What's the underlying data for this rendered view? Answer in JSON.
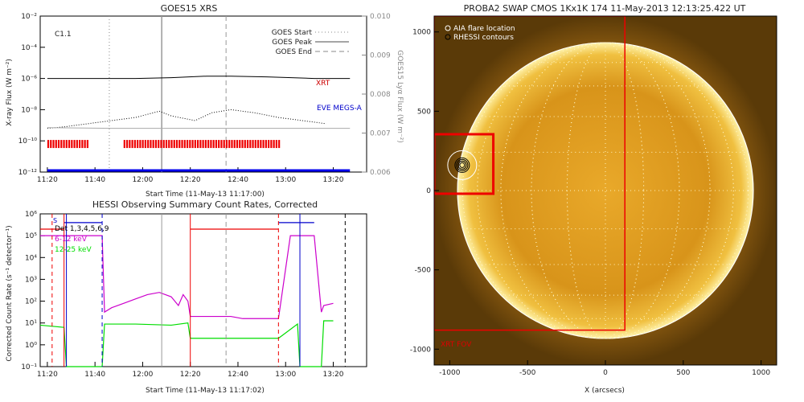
{
  "chart_data": [
    {
      "type": "line",
      "title": "GOES15 XRS",
      "xlabel": "Start Time (11-May-13 11:17:00)",
      "ylabel": "X-ray Flux (W m⁻²)",
      "y2label": "GOES15 Lyα Flux (W m⁻²)",
      "x_ticks": [
        "11:20",
        "11:40",
        "12:00",
        "12:20",
        "12:40",
        "13:00",
        "13:20"
      ],
      "y_ticks": [
        "10⁻¹²",
        "10⁻¹⁰",
        "10⁻⁸",
        "10⁻⁶",
        "10⁻⁴",
        "10⁻²"
      ],
      "y2_ticks": [
        "0.006",
        "0.007",
        "0.008",
        "0.009",
        "0.010"
      ],
      "ylim_exp": [
        -12,
        -2
      ],
      "y2lim": [
        0.006,
        0.01
      ],
      "flare_class": "C1.1",
      "legend": [
        {
          "label": "GOES Start",
          "style": "dotted"
        },
        {
          "label": "GOES Peak",
          "style": "solid"
        },
        {
          "label": "GOES End",
          "style": "dashed"
        }
      ],
      "event_lines_min": {
        "start": 29,
        "peak": 51,
        "end": 78
      },
      "labels": {
        "xrt": "XRT",
        "eve": "EVE MEGS-A"
      },
      "series": [
        {
          "name": "XRT",
          "x": [
            3,
            20,
            40,
            55,
            70,
            80,
            95,
            115,
            130
          ],
          "y_exp": [
            -6.0,
            -6.0,
            -6.0,
            -5.95,
            -5.85,
            -5.85,
            -5.9,
            -6.0,
            -6.0
          ]
        },
        {
          "name": "EVE MEGS-A",
          "x": [
            3,
            30,
            45,
            55,
            65,
            70,
            75,
            90,
            110,
            130
          ],
          "y_exp": [
            -12.0,
            -12.0,
            -12.0,
            -12.0,
            -12.0,
            -12.0,
            -12.0,
            -12.0,
            -12.0,
            -12.0
          ]
        },
        {
          "x": [
            3,
            10,
            20,
            30,
            40,
            50,
            55,
            65,
            72,
            80,
            90,
            100,
            110,
            120
          ],
          "y_exp": [
            -9.2,
            -9.1,
            -8.9,
            -8.7,
            -8.5,
            -8.1,
            -8.4,
            -8.7,
            -8.2,
            -8.0,
            -8.2,
            -8.5,
            -8.7,
            -8.9
          ]
        },
        {
          "x": [
            3,
            30,
            60,
            90,
            130
          ],
          "y2": [
            0.00714,
            0.00712,
            0.00712,
            0.00712,
            0.00712
          ]
        }
      ],
      "coverage_bars_min": [
        [
          3,
          20
        ],
        [
          35,
          100
        ]
      ]
    },
    {
      "type": "line",
      "title": "HESSI Observing Summary Count Rates, Corrected",
      "xlabel": "Start Time (11-May-13 11:17:02)",
      "ylabel": "Corrected Count Rate (s⁻¹ detector⁻¹)",
      "x_ticks": [
        "11:20",
        "11:40",
        "12:00",
        "12:20",
        "12:40",
        "13:00",
        "13:20"
      ],
      "y_ticks": [
        "10⁻¹",
        "10⁰",
        "10¹",
        "10²",
        "10³",
        "10⁴",
        "10⁵",
        "10⁶"
      ],
      "ylim_exp": [
        -1,
        6
      ],
      "legend_lines": [
        "Det 1,3,4,5,6,9",
        "6-12 keV",
        "12-25 keV"
      ],
      "legend_colors": [
        "#000000",
        "#cc00cc",
        "#00dd00"
      ],
      "marker_s": "S",
      "series": [
        {
          "name": "6-12 keV",
          "x": [
            0,
            10,
            11,
            26,
            27,
            30,
            35,
            40,
            45,
            50,
            55,
            58,
            60,
            62,
            63,
            76,
            80,
            85,
            90,
            95,
            100,
            105,
            108,
            109,
            115,
            118,
            119,
            123
          ],
          "y_exp": [
            5.0,
            5.0,
            5.0,
            5.0,
            1.5,
            1.7,
            1.9,
            2.1,
            2.3,
            2.4,
            2.2,
            1.8,
            2.3,
            2.0,
            1.3,
            1.3,
            1.3,
            1.2,
            1.2,
            1.2,
            1.2,
            5.0,
            5.0,
            5.0,
            5.0,
            1.5,
            1.8,
            1.9
          ]
        },
        {
          "name": "12-25 keV",
          "x": [
            0,
            10,
            11,
            26,
            27,
            40,
            55,
            62,
            63,
            76,
            80,
            90,
            100,
            108,
            109,
            118,
            119,
            123
          ],
          "y_exp": [
            0.9,
            0.8,
            -1.0,
            -1.0,
            0.95,
            0.95,
            0.9,
            1.0,
            0.3,
            0.3,
            0.3,
            0.3,
            0.3,
            0.95,
            -1.0,
            -1.0,
            1.1,
            1.1
          ]
        },
        {
          "name": "red",
          "x": [
            0,
            10
          ],
          "y_exp": [
            5.3,
            5.3
          ]
        },
        {
          "name": "red2",
          "x": [
            63,
            76,
            90,
            100
          ],
          "y_exp": [
            5.3,
            5.3,
            5.3,
            5.3
          ]
        },
        {
          "name": "blue",
          "x": [
            10,
            26
          ],
          "y_exp": [
            5.6,
            5.6
          ]
        },
        {
          "name": "blue2",
          "x": [
            100,
            115
          ],
          "y_exp": [
            5.6,
            5.6
          ]
        }
      ],
      "event_lines_min": {
        "peak": 51,
        "end": 78
      }
    },
    {
      "type": "image",
      "title": "PROBA2 SWAP CMOS 1Kx1K 174 11-May-2013 12:13:25.422 UT",
      "xlabel": "X (arcsecs)",
      "x_ticks": [
        "-1000",
        "-500",
        "0",
        "500",
        "1000"
      ],
      "y_ticks": [
        "-1000",
        "-500",
        "0",
        "500",
        "1000"
      ],
      "xlim": [
        -1100,
        1100
      ],
      "ylim": [
        -1100,
        1100
      ],
      "legend": [
        "AIA flare location",
        "RHESSI contours"
      ],
      "fov_label": "XRT FOV",
      "solar_radius_arcsec": 950,
      "flare_location": [
        -920,
        160
      ],
      "xrt_fov": {
        "x": [
          -1100,
          125
        ],
        "y": [
          -880,
          1100
        ]
      },
      "inset_box": {
        "x": [
          -1100,
          -720
        ],
        "y": [
          -20,
          355
        ]
      }
    }
  ]
}
